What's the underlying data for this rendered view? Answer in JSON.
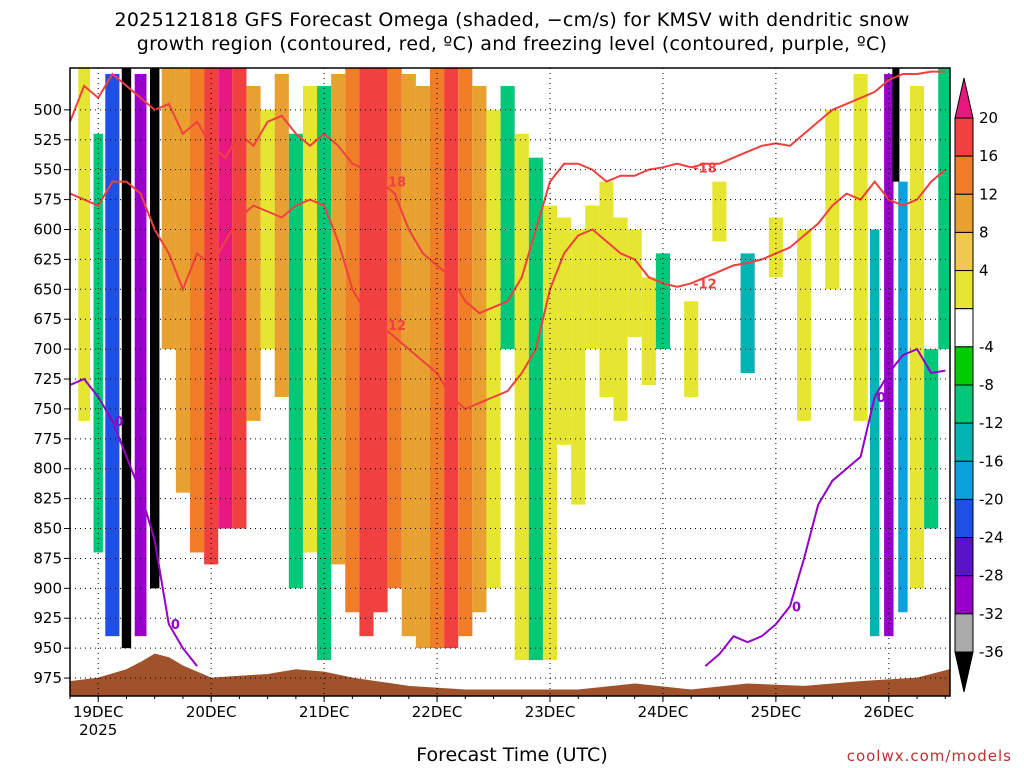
{
  "title": {
    "line1": "2025121818 GFS Forecast Omega (shaded, −cm/s) for KMSV with dendritic snow",
    "line2": "growth region (contoured, red, ºC) and freezing level (contoured, purple, ºC)"
  },
  "credit": "coolwx.com/models",
  "chart_data": {
    "type": "heatmap",
    "xlabel": "Forecast Time (UTC)",
    "ylabel": "",
    "x_ticks": [
      "19DEC\n2025",
      "20DEC",
      "21DEC",
      "22DEC",
      "23DEC",
      "24DEC",
      "25DEC",
      "26DEC"
    ],
    "y_ticks": [
      500,
      525,
      550,
      575,
      600,
      625,
      650,
      675,
      700,
      725,
      750,
      775,
      800,
      825,
      850,
      875,
      900,
      925,
      950,
      975
    ],
    "x_range_hours": [
      -6,
      181
    ],
    "y_range_hpa": [
      465,
      990
    ],
    "grid": true,
    "colorbar": {
      "labels": [
        "20",
        "16",
        "12",
        "8",
        "4",
        "-4",
        "-8",
        "-12",
        "-16",
        "-20",
        "-24",
        "-28",
        "-32",
        "-36"
      ],
      "colors": [
        "#e8197e",
        "#f04040",
        "#f07d28",
        "#e8a030",
        "#f0c850",
        "#e6e632",
        "#ffffff",
        "#00cc00",
        "#00c878",
        "#00b4b4",
        "#0aa0dc",
        "#1e50e6",
        "#5a14c8",
        "#9600c8",
        "#aaaaaa",
        "#000000"
      ]
    },
    "omega_columns": [
      {
        "h": -3,
        "w": 2.5,
        "top": 465,
        "bot": 760,
        "v": 6
      },
      {
        "h": 0,
        "w": 2,
        "top": 520,
        "bot": 870,
        "v": -8
      },
      {
        "h": 3,
        "w": 3,
        "top": 470,
        "bot": 940,
        "v": -20
      },
      {
        "h": 6,
        "w": 2,
        "top": 465,
        "bot": 950,
        "v": -36
      },
      {
        "h": 9,
        "w": 2.5,
        "top": 470,
        "bot": 940,
        "v": -28
      },
      {
        "h": 12,
        "w": 2,
        "top": 465,
        "bot": 900,
        "v": -36
      },
      {
        "h": 15,
        "w": 3,
        "top": 465,
        "bot": 700,
        "v": 8
      },
      {
        "h": 18,
        "w": 3,
        "top": 465,
        "bot": 820,
        "v": 10
      },
      {
        "h": 21,
        "w": 3,
        "top": 465,
        "bot": 870,
        "v": 14
      },
      {
        "h": 24,
        "w": 3,
        "top": 465,
        "bot": 880,
        "v": 18
      },
      {
        "h": 27,
        "w": 3,
        "top": 465,
        "bot": 850,
        "v": 20
      },
      {
        "h": 30,
        "w": 3,
        "top": 465,
        "bot": 850,
        "v": 16
      },
      {
        "h": 33,
        "w": 3,
        "top": 480,
        "bot": 760,
        "v": 10
      },
      {
        "h": 36,
        "w": 3,
        "top": 500,
        "bot": 700,
        "v": 6
      },
      {
        "h": 39,
        "w": 3,
        "top": 470,
        "bot": 740,
        "v": 8
      },
      {
        "h": 42,
        "w": 3,
        "top": 520,
        "bot": 900,
        "v": -8
      },
      {
        "h": 45,
        "w": 3,
        "top": 480,
        "bot": 870,
        "v": 6
      },
      {
        "h": 48,
        "w": 3,
        "top": 480,
        "bot": 960,
        "v": -8
      },
      {
        "h": 51,
        "w": 3,
        "top": 470,
        "bot": 880,
        "v": 8
      },
      {
        "h": 54,
        "w": 3,
        "top": 465,
        "bot": 920,
        "v": 12
      },
      {
        "h": 57,
        "w": 3,
        "top": 465,
        "bot": 940,
        "v": 16
      },
      {
        "h": 60,
        "w": 3,
        "top": 465,
        "bot": 920,
        "v": 18
      },
      {
        "h": 63,
        "w": 3,
        "top": 465,
        "bot": 900,
        "v": 14
      },
      {
        "h": 66,
        "w": 3,
        "top": 470,
        "bot": 940,
        "v": 10
      },
      {
        "h": 69,
        "w": 3,
        "top": 480,
        "bot": 950,
        "v": 8
      },
      {
        "h": 72,
        "w": 3,
        "top": 465,
        "bot": 950,
        "v": 12
      },
      {
        "h": 75,
        "w": 3,
        "top": 465,
        "bot": 950,
        "v": 16
      },
      {
        "h": 78,
        "w": 3,
        "top": 465,
        "bot": 940,
        "v": 14
      },
      {
        "h": 81,
        "w": 3,
        "top": 480,
        "bot": 920,
        "v": 8
      },
      {
        "h": 84,
        "w": 3,
        "top": 500,
        "bot": 900,
        "v": 6
      },
      {
        "h": 87,
        "w": 3,
        "top": 480,
        "bot": 700,
        "v": -8
      },
      {
        "h": 90,
        "w": 3,
        "top": 520,
        "bot": 960,
        "v": 6
      },
      {
        "h": 93,
        "w": 3,
        "top": 540,
        "bot": 960,
        "v": -8
      },
      {
        "h": 96,
        "w": 3,
        "top": 580,
        "bot": 960,
        "v": 6
      },
      {
        "h": 99,
        "w": 3,
        "top": 590,
        "bot": 780,
        "v": 6
      },
      {
        "h": 102,
        "w": 3,
        "top": 600,
        "bot": 830,
        "v": 6
      },
      {
        "h": 105,
        "w": 3,
        "top": 580,
        "bot": 700,
        "v": 6
      },
      {
        "h": 108,
        "w": 3,
        "top": 560,
        "bot": 740,
        "v": 6
      },
      {
        "h": 111,
        "w": 3,
        "top": 590,
        "bot": 760,
        "v": 6
      },
      {
        "h": 114,
        "w": 3,
        "top": 600,
        "bot": 690,
        "v": 6
      },
      {
        "h": 117,
        "w": 3,
        "top": 640,
        "bot": 730,
        "v": 6
      },
      {
        "h": 120,
        "w": 3,
        "top": 620,
        "bot": 700,
        "v": -8
      },
      {
        "h": 126,
        "w": 3,
        "top": 660,
        "bot": 740,
        "v": 6
      },
      {
        "h": 132,
        "w": 3,
        "top": 560,
        "bot": 610,
        "v": 6
      },
      {
        "h": 138,
        "w": 3,
        "top": 620,
        "bot": 720,
        "v": -12
      },
      {
        "h": 144,
        "w": 3,
        "top": 590,
        "bot": 640,
        "v": 6
      },
      {
        "h": 150,
        "w": 3,
        "top": 600,
        "bot": 760,
        "v": 6
      },
      {
        "h": 156,
        "w": 3,
        "top": 500,
        "bot": 650,
        "v": 6
      },
      {
        "h": 162,
        "w": 3,
        "top": 470,
        "bot": 760,
        "v": 6
      },
      {
        "h": 165,
        "w": 2,
        "top": 600,
        "bot": 940,
        "v": -12
      },
      {
        "h": 168,
        "w": 2,
        "top": 470,
        "bot": 940,
        "v": -28
      },
      {
        "h": 169.5,
        "w": 1.5,
        "top": 465,
        "bot": 560,
        "v": -36
      },
      {
        "h": 171,
        "w": 2,
        "top": 560,
        "bot": 920,
        "v": -16
      },
      {
        "h": 174,
        "w": 3,
        "top": 480,
        "bot": 900,
        "v": 6
      },
      {
        "h": 177,
        "w": 3,
        "top": 700,
        "bot": 850,
        "v": -8
      },
      {
        "h": 180,
        "w": 3,
        "top": 465,
        "bot": 700,
        "v": -8
      }
    ],
    "contours": [
      {
        "name": "-18",
        "color": "#f04040",
        "points": [
          [
            -6,
            510
          ],
          [
            -3,
            480
          ],
          [
            0,
            490
          ],
          [
            3,
            470
          ],
          [
            6,
            480
          ],
          [
            9,
            490
          ],
          [
            12,
            500
          ],
          [
            15,
            495
          ],
          [
            18,
            520
          ],
          [
            21,
            510
          ],
          [
            24,
            530
          ],
          [
            27,
            540
          ],
          [
            30,
            520
          ],
          [
            33,
            530
          ],
          [
            36,
            510
          ],
          [
            39,
            505
          ],
          [
            42,
            520
          ],
          [
            45,
            530
          ],
          [
            48,
            520
          ],
          [
            51,
            530
          ],
          [
            54,
            545
          ],
          [
            57,
            550
          ],
          [
            60,
            560
          ],
          [
            63,
            570
          ],
          [
            66,
            600
          ],
          [
            69,
            620
          ],
          [
            72,
            630
          ],
          [
            75,
            640
          ],
          [
            78,
            660
          ],
          [
            81,
            670
          ],
          [
            84,
            665
          ],
          [
            87,
            660
          ],
          [
            90,
            640
          ],
          [
            93,
            600
          ],
          [
            96,
            560
          ],
          [
            99,
            545
          ],
          [
            102,
            545
          ],
          [
            105,
            550
          ],
          [
            108,
            560
          ],
          [
            111,
            555
          ],
          [
            114,
            555
          ],
          [
            117,
            550
          ],
          [
            120,
            548
          ],
          [
            123,
            545
          ],
          [
            126,
            548
          ],
          [
            129,
            545
          ],
          [
            132,
            545
          ],
          [
            135,
            540
          ],
          [
            138,
            535
          ],
          [
            141,
            530
          ],
          [
            144,
            528
          ],
          [
            147,
            530
          ],
          [
            150,
            520
          ],
          [
            153,
            510
          ],
          [
            156,
            500
          ],
          [
            159,
            495
          ],
          [
            162,
            490
          ],
          [
            165,
            485
          ],
          [
            168,
            475
          ],
          [
            171,
            470
          ],
          [
            174,
            470
          ],
          [
            177,
            468
          ],
          [
            180,
            468
          ]
        ]
      },
      {
        "name": "-12",
        "color": "#f04040",
        "points": [
          [
            -6,
            570
          ],
          [
            -3,
            575
          ],
          [
            0,
            580
          ],
          [
            3,
            560
          ],
          [
            6,
            560
          ],
          [
            9,
            570
          ],
          [
            12,
            600
          ],
          [
            15,
            620
          ],
          [
            18,
            650
          ],
          [
            21,
            620
          ],
          [
            24,
            630
          ],
          [
            27,
            610
          ],
          [
            30,
            590
          ],
          [
            33,
            580
          ],
          [
            36,
            585
          ],
          [
            39,
            590
          ],
          [
            42,
            580
          ],
          [
            45,
            575
          ],
          [
            48,
            580
          ],
          [
            51,
            610
          ],
          [
            54,
            650
          ],
          [
            57,
            670
          ],
          [
            60,
            680
          ],
          [
            63,
            690
          ],
          [
            66,
            700
          ],
          [
            69,
            710
          ],
          [
            72,
            720
          ],
          [
            75,
            740
          ],
          [
            78,
            750
          ],
          [
            81,
            745
          ],
          [
            84,
            740
          ],
          [
            87,
            735
          ],
          [
            90,
            720
          ],
          [
            93,
            700
          ],
          [
            96,
            650
          ],
          [
            99,
            620
          ],
          [
            102,
            605
          ],
          [
            105,
            600
          ],
          [
            108,
            610
          ],
          [
            111,
            620
          ],
          [
            114,
            625
          ],
          [
            117,
            640
          ],
          [
            120,
            645
          ],
          [
            123,
            648
          ],
          [
            126,
            645
          ],
          [
            129,
            640
          ],
          [
            132,
            635
          ],
          [
            135,
            630
          ],
          [
            138,
            628
          ],
          [
            141,
            625
          ],
          [
            144,
            620
          ],
          [
            147,
            615
          ],
          [
            150,
            605
          ],
          [
            153,
            595
          ],
          [
            156,
            580
          ],
          [
            159,
            570
          ],
          [
            162,
            575
          ],
          [
            165,
            560
          ],
          [
            168,
            575
          ],
          [
            171,
            580
          ],
          [
            174,
            575
          ],
          [
            177,
            560
          ],
          [
            180,
            550
          ]
        ]
      },
      {
        "name": "0",
        "color": "#9600c8",
        "points": [
          [
            -6,
            730
          ],
          [
            -3,
            725
          ],
          [
            0,
            740
          ],
          [
            3,
            760
          ],
          [
            6,
            790
          ],
          [
            9,
            820
          ],
          [
            12,
            860
          ],
          [
            15,
            930
          ],
          [
            18,
            950
          ],
          [
            21,
            965
          ]
        ]
      },
      {
        "name": "0",
        "color": "#9600c8",
        "points": [
          [
            129,
            965
          ],
          [
            132,
            955
          ],
          [
            135,
            940
          ],
          [
            138,
            945
          ],
          [
            141,
            940
          ],
          [
            144,
            930
          ],
          [
            147,
            915
          ],
          [
            150,
            875
          ],
          [
            153,
            830
          ],
          [
            156,
            810
          ],
          [
            159,
            800
          ],
          [
            162,
            790
          ],
          [
            165,
            740
          ],
          [
            168,
            720
          ],
          [
            171,
            705
          ],
          [
            174,
            700
          ],
          [
            177,
            720
          ],
          [
            180,
            718
          ]
        ]
      }
    ],
    "terrain_hpa": [
      [
        -6,
        978
      ],
      [
        0,
        975
      ],
      [
        6,
        968
      ],
      [
        9,
        962
      ],
      [
        12,
        955
      ],
      [
        15,
        958
      ],
      [
        18,
        965
      ],
      [
        24,
        975
      ],
      [
        36,
        972
      ],
      [
        42,
        968
      ],
      [
        48,
        970
      ],
      [
        54,
        975
      ],
      [
        66,
        982
      ],
      [
        78,
        985
      ],
      [
        90,
        985
      ],
      [
        102,
        985
      ],
      [
        114,
        980
      ],
      [
        126,
        985
      ],
      [
        138,
        980
      ],
      [
        150,
        982
      ],
      [
        162,
        978
      ],
      [
        174,
        975
      ],
      [
        181,
        968
      ]
    ]
  }
}
